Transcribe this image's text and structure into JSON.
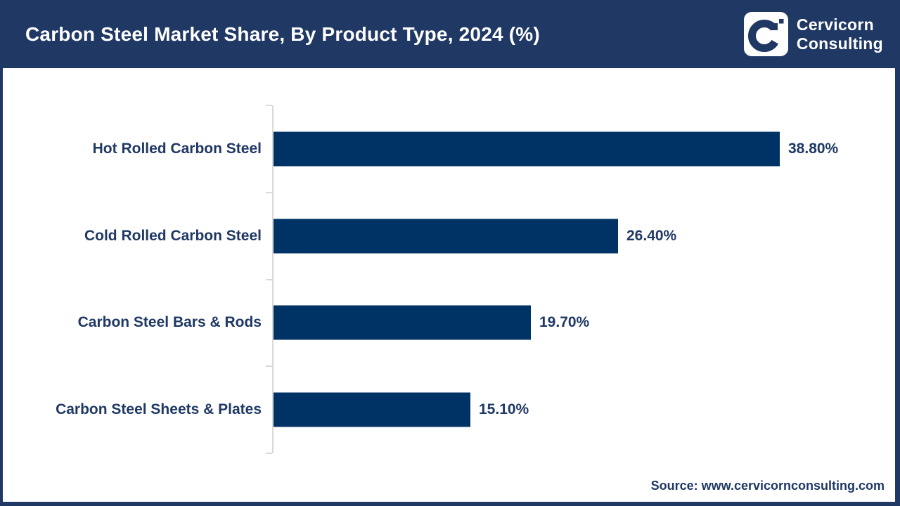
{
  "header": {
    "title": "Carbon Steel Market Share, By Product Type, 2024 (%)",
    "logo": {
      "name": "Cervicorn Consulting",
      "line1": "Cervicorn",
      "line2": "Consulting"
    }
  },
  "chart_data": {
    "type": "bar",
    "orientation": "horizontal",
    "title": "Carbon Steel Market Share, By Product Type, 2024 (%)",
    "categories": [
      "Hot Rolled Carbon Steel",
      "Cold Rolled Carbon Steel",
      "Carbon Steel Bars & Rods",
      "Carbon Steel Sheets & Plates"
    ],
    "values": [
      38.8,
      26.4,
      19.7,
      15.1
    ],
    "value_labels": [
      "38.80%",
      "26.40%",
      "19.70%",
      "15.10%"
    ],
    "xlabel": "",
    "ylabel": "",
    "xlim": [
      0,
      40
    ],
    "grid": false,
    "legend": false,
    "unit": "%"
  },
  "footer": {
    "source": "Source: www.cervicornconsulting.com"
  },
  "colors": {
    "header_bg": "#1F3864",
    "navy_text": "#1F3864",
    "bar_navy": "#003365",
    "axis_gray": "#D9D9D9",
    "logo_mark": "#1F3864",
    "white": "#FFFFFF"
  }
}
